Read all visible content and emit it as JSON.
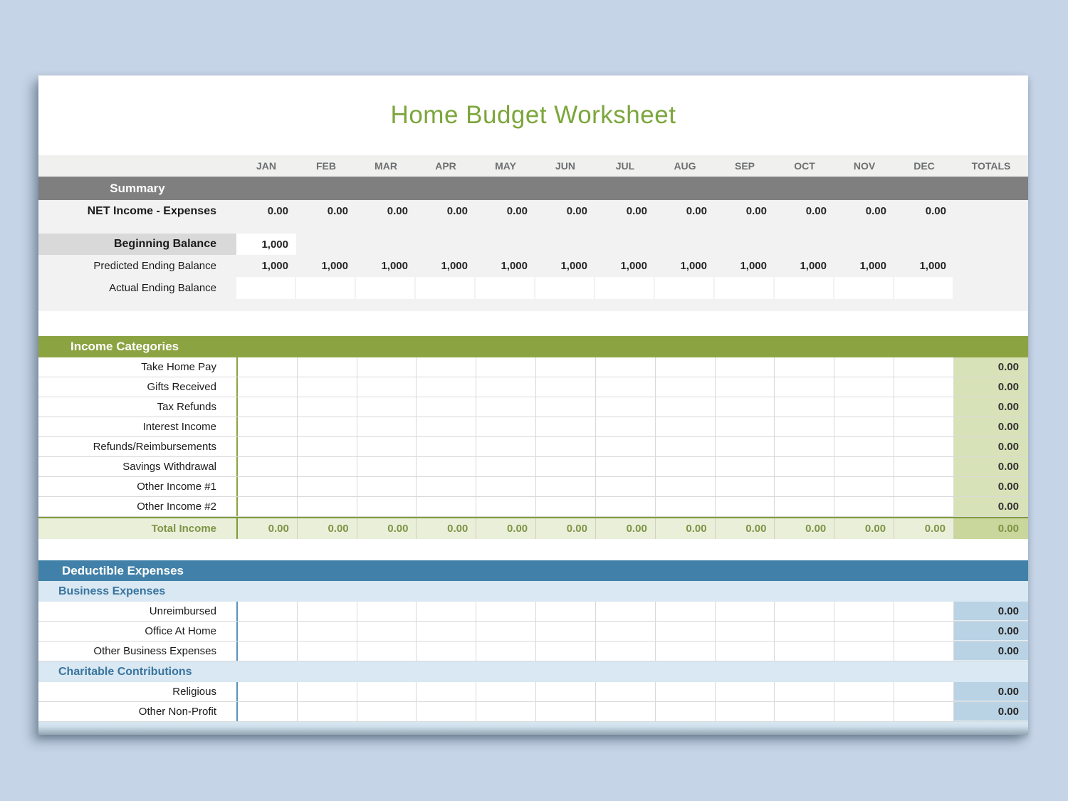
{
  "title": "Home Budget Worksheet",
  "months": [
    "JAN",
    "FEB",
    "MAR",
    "APR",
    "MAY",
    "JUN",
    "JUL",
    "AUG",
    "SEP",
    "OCT",
    "NOV",
    "DEC"
  ],
  "totals_label": "TOTALS",
  "colors": {
    "page_background": "#c5d4e6",
    "title_green": "#7ca63c",
    "income_green": "#8ca342",
    "income_totals_cell": "#d8e2b8",
    "expense_blue": "#4181a9",
    "expense_subheader": "#d9e8f2",
    "expense_totals_cell": "#b9d3e5",
    "summary_gray": "#7f7f7f"
  },
  "summary": {
    "header": "Summary",
    "net": {
      "label": "NET Income - Expenses",
      "values": [
        "0.00",
        "0.00",
        "0.00",
        "0.00",
        "0.00",
        "0.00",
        "0.00",
        "0.00",
        "0.00",
        "0.00",
        "0.00",
        "0.00"
      ]
    },
    "beginning": {
      "label": "Beginning Balance",
      "values": [
        "1,000"
      ]
    },
    "predicted": {
      "label": "Predicted Ending Balance",
      "values": [
        "1,000",
        "1,000",
        "1,000",
        "1,000",
        "1,000",
        "1,000",
        "1,000",
        "1,000",
        "1,000",
        "1,000",
        "1,000",
        "1,000"
      ]
    },
    "actual": {
      "label": "Actual Ending Balance"
    }
  },
  "income": {
    "header": "Income Categories",
    "rows": [
      {
        "label": "Take Home Pay",
        "total": "0.00"
      },
      {
        "label": "Gifts Received",
        "total": "0.00"
      },
      {
        "label": "Tax Refunds",
        "total": "0.00"
      },
      {
        "label": "Interest Income",
        "total": "0.00"
      },
      {
        "label": "Refunds/Reimbursements",
        "total": "0.00"
      },
      {
        "label": "Savings Withdrawal",
        "total": "0.00"
      },
      {
        "label": "Other Income #1",
        "total": "0.00"
      },
      {
        "label": "Other Income #2",
        "total": "0.00"
      }
    ],
    "total_row": {
      "label": "Total Income",
      "values": [
        "0.00",
        "0.00",
        "0.00",
        "0.00",
        "0.00",
        "0.00",
        "0.00",
        "0.00",
        "0.00",
        "0.00",
        "0.00",
        "0.00"
      ],
      "total": "0.00"
    }
  },
  "expenses": {
    "header": "Deductible Expenses",
    "sections": [
      {
        "subheader": "Business Expenses",
        "rows": [
          {
            "label": "Unreimbursed",
            "total": "0.00"
          },
          {
            "label": "Office At Home",
            "total": "0.00"
          },
          {
            "label": "Other Business Expenses",
            "total": "0.00"
          }
        ]
      },
      {
        "subheader": "Charitable Contributions",
        "rows": [
          {
            "label": "Religious",
            "total": "0.00"
          },
          {
            "label": "Other Non-Profit",
            "total": "0.00"
          }
        ]
      }
    ]
  }
}
